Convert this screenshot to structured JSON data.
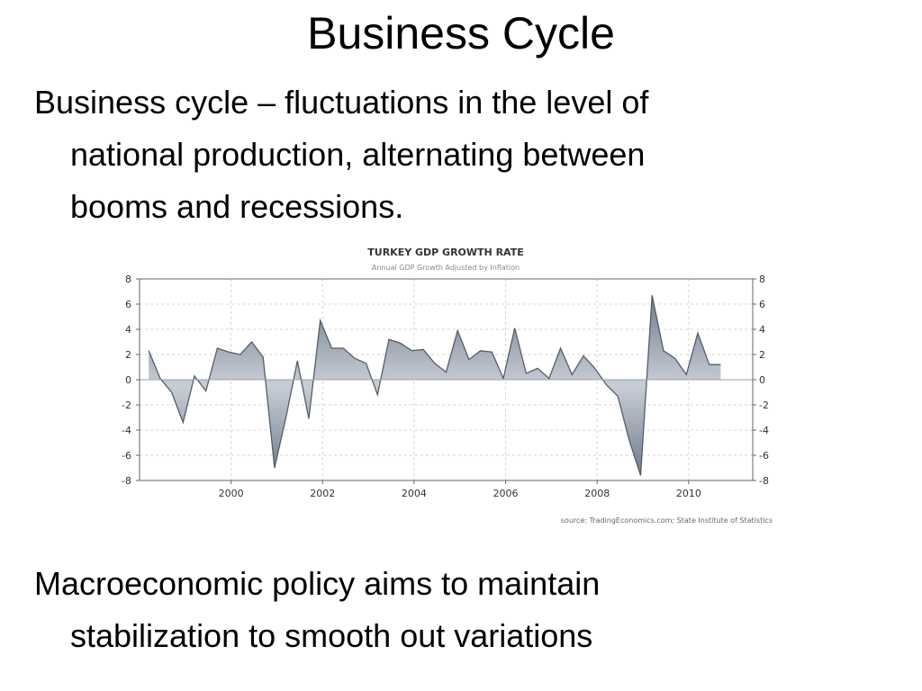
{
  "slide": {
    "title": "Business Cycle",
    "paragraph1": {
      "line1": "Business cycle – fluctuations in the level of",
      "line2": "national production, alternating between",
      "line3": "booms and recessions."
    },
    "paragraph2": {
      "line1": "Macroeconomic policy aims to maintain",
      "line2": "stabilization to smooth out variations"
    }
  },
  "chart_data": {
    "type": "area",
    "title": "TURKEY GDP GROWTH RATE",
    "subtitle": "Annual GDP Growth Adjusted by Inflation",
    "source": "source: TradingEconomics.com; State Institute of Statistics",
    "xlabel": "",
    "ylabel": "",
    "xlim": [
      1998.0,
      2011.4
    ],
    "ylim": [
      -8,
      8
    ],
    "yticks": [
      "8",
      "6",
      "4",
      "2",
      "0",
      "-2",
      "-4",
      "-6",
      "-8"
    ],
    "xticks": [
      "2000",
      "2002",
      "2004",
      "2006",
      "2008",
      "2010"
    ],
    "grid": true,
    "colors": {
      "fill": "#8a96a6",
      "line": "#555d66",
      "grid": "#d4d4d4"
    },
    "x": [
      1998.2,
      1998.45,
      1998.7,
      1998.95,
      1999.2,
      1999.45,
      1999.7,
      1999.95,
      2000.2,
      2000.45,
      2000.7,
      2000.95,
      2001.2,
      2001.45,
      2001.7,
      2001.95,
      2002.2,
      2002.45,
      2002.7,
      2002.95,
      2003.2,
      2003.45,
      2003.7,
      2003.95,
      2004.2,
      2004.45,
      2004.7,
      2004.95,
      2005.2,
      2005.45,
      2005.7,
      2005.95,
      2006.2,
      2006.45,
      2006.7,
      2006.95,
      2007.2,
      2007.45,
      2007.7,
      2007.95,
      2008.2,
      2008.45,
      2008.7,
      2008.95,
      2009.2,
      2009.45,
      2009.7,
      2009.95,
      2010.2,
      2010.45,
      2010.7
    ],
    "y": [
      2.3,
      0.1,
      -1.0,
      -3.4,
      0.3,
      -0.9,
      2.5,
      2.2,
      2.0,
      3.0,
      1.8,
      -7.0,
      -3.0,
      1.5,
      -3.1,
      4.7,
      2.5,
      2.5,
      1.7,
      1.3,
      -1.2,
      3.2,
      2.9,
      2.3,
      2.4,
      1.3,
      0.6,
      3.9,
      1.6,
      2.3,
      2.2,
      0.1,
      4.1,
      0.5,
      0.9,
      0.1,
      2.5,
      0.4,
      1.9,
      0.9,
      -0.4,
      -1.3,
      -4.8,
      -7.6,
      6.7,
      2.3,
      1.7,
      0.4,
      3.7,
      1.2,
      1.2
    ]
  }
}
